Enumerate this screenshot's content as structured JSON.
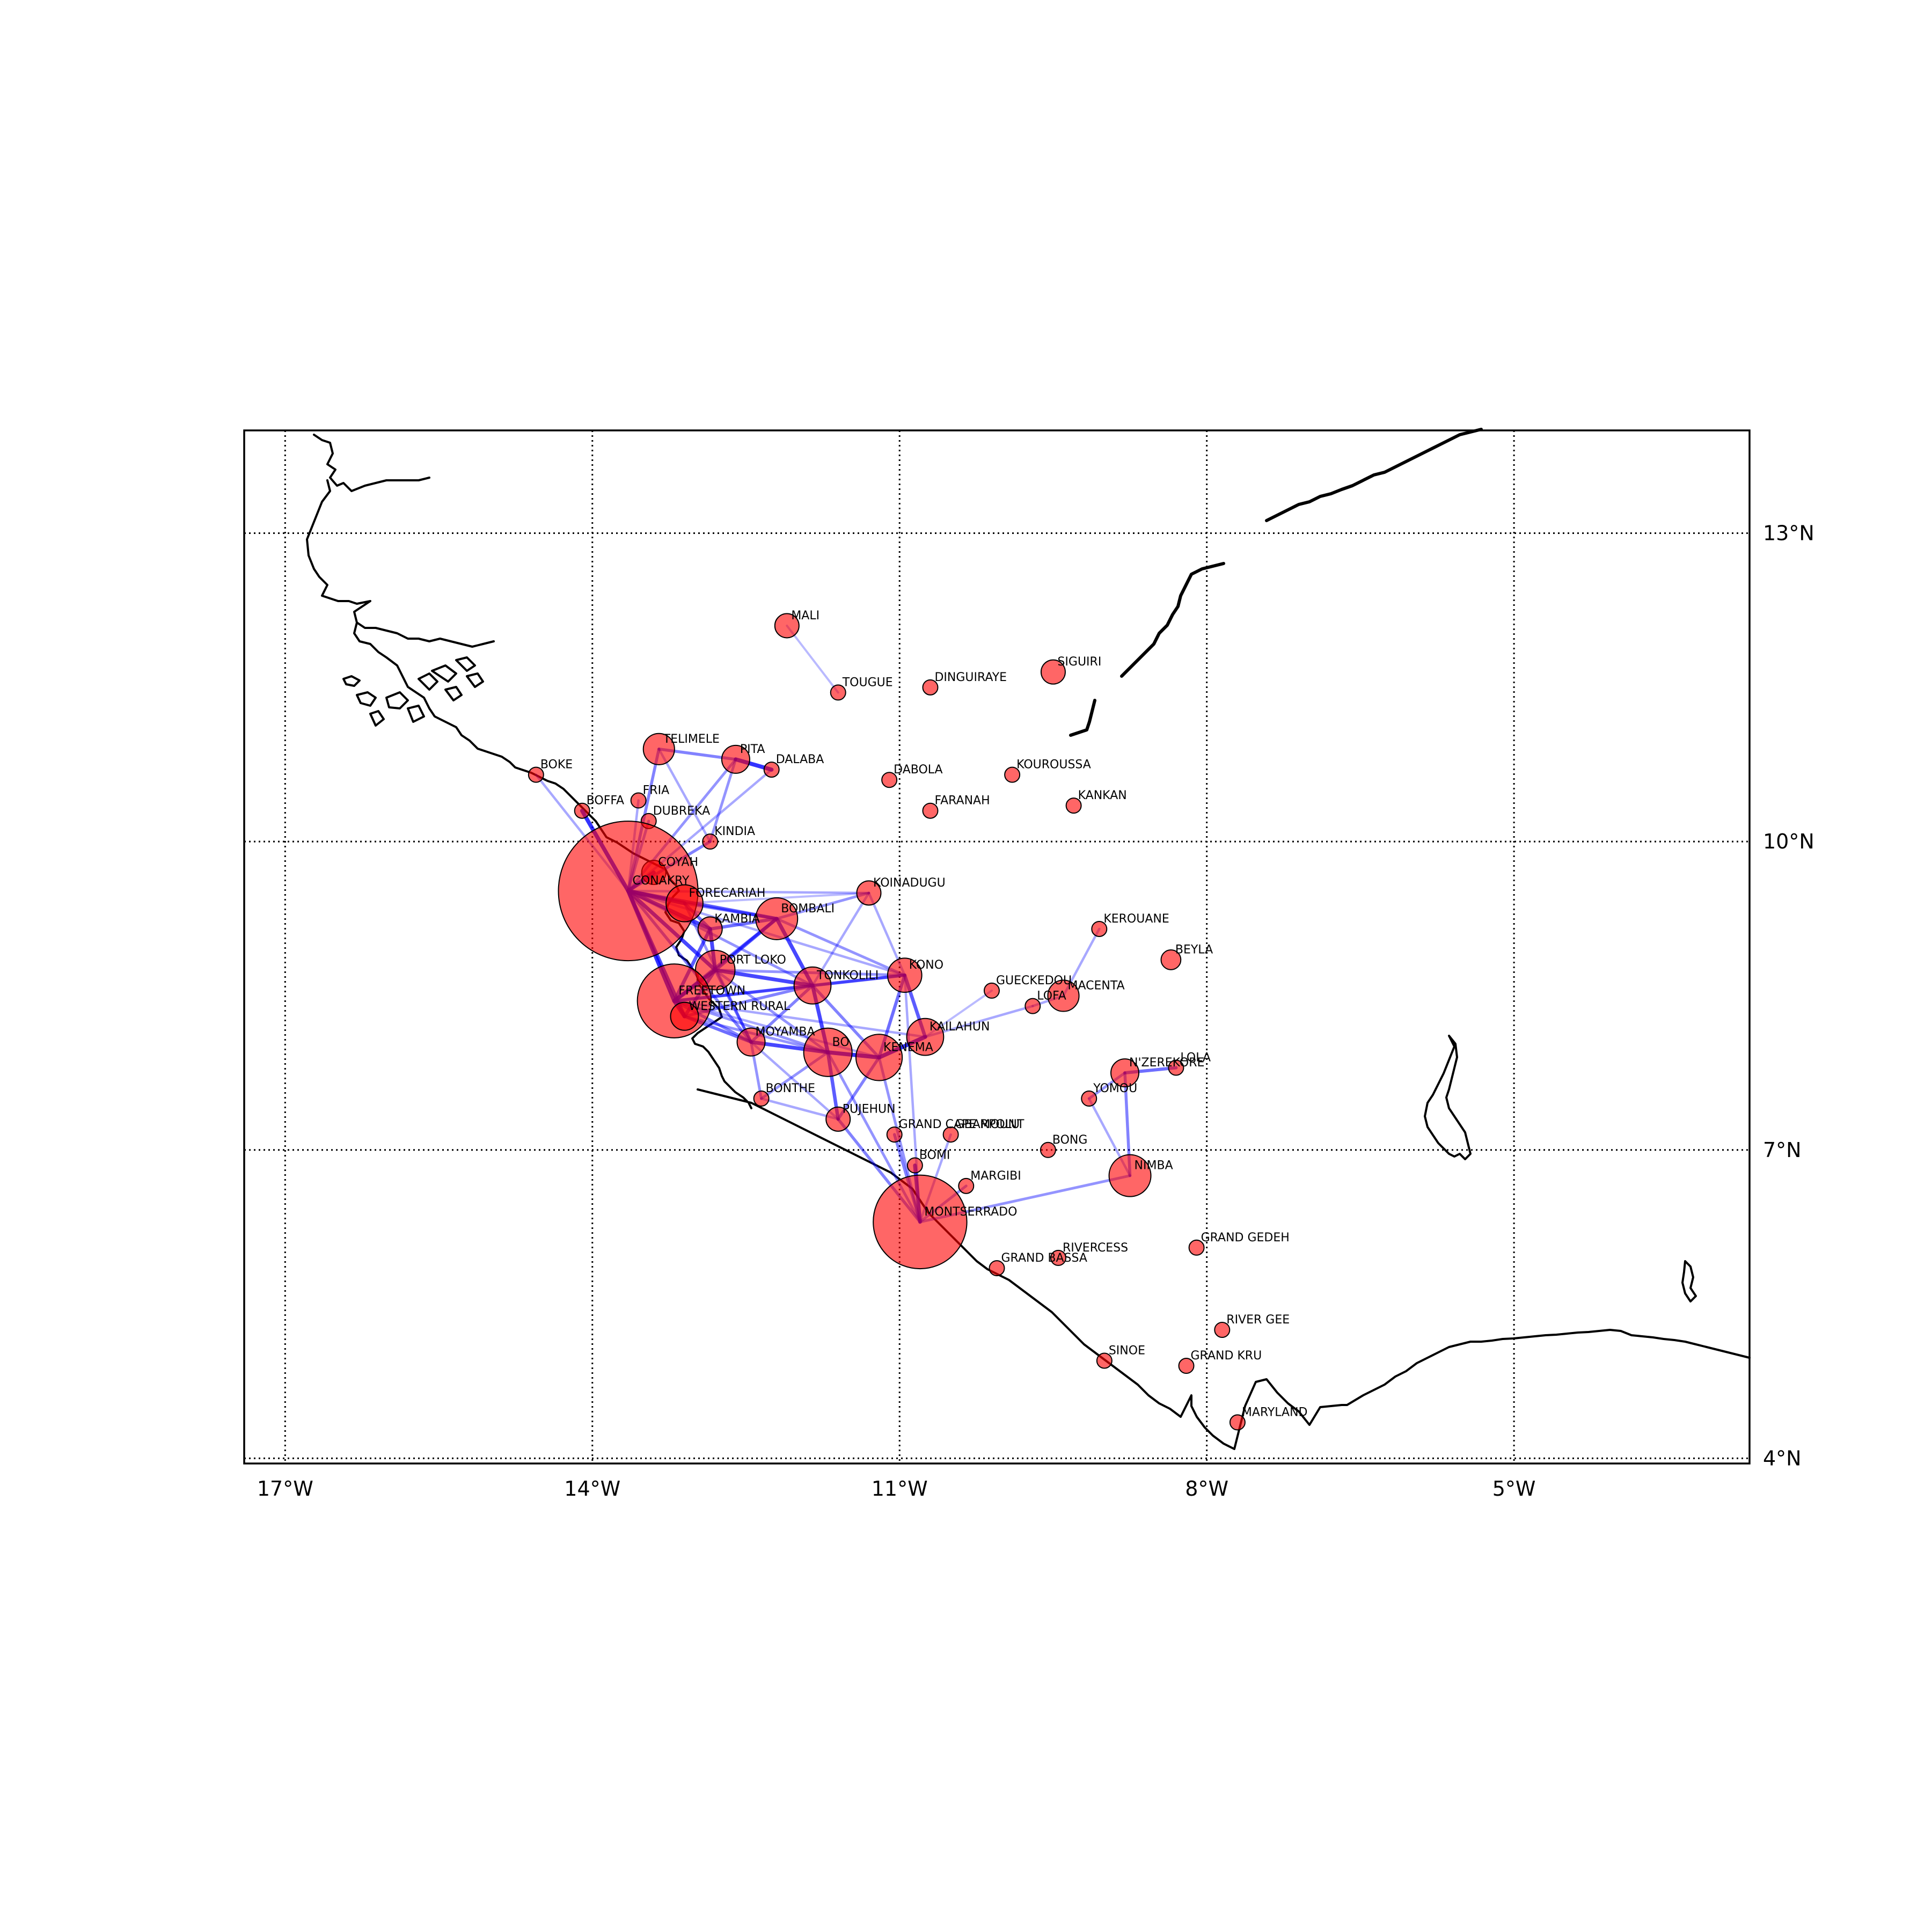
{
  "map": {
    "lon_range": [
      -17.4,
      -2.7
    ],
    "lat_range": [
      3.95,
      14.0
    ],
    "lon_ticks": [
      {
        "value": -17,
        "label": "17°W"
      },
      {
        "value": -14,
        "label": "14°W"
      },
      {
        "value": -11,
        "label": "11°W"
      },
      {
        "value": -8,
        "label": "8°W"
      },
      {
        "value": -5,
        "label": "5°W"
      }
    ],
    "lat_ticks": [
      {
        "value": 13,
        "label": "13°N"
      },
      {
        "value": 10,
        "label": "10°N"
      },
      {
        "value": 7,
        "label": "7°N"
      },
      {
        "value": 4,
        "label": "4°N"
      }
    ],
    "colors": {
      "node_fill": "#ff0000",
      "edge": "#0000ff",
      "coast": "#000000"
    }
  },
  "chart_data": {
    "type": "scatter",
    "title": "",
    "xlabel": "",
    "ylabel": "",
    "xlim": [
      -17.4,
      -2.7
    ],
    "ylim": [
      3.95,
      14.0
    ],
    "grid": true,
    "size_encoding": "relative case count (circle area)",
    "points": [
      {
        "name": "MALI",
        "lon": -12.1,
        "lat": 12.1,
        "size": 3
      },
      {
        "name": "TOUGUE",
        "lon": -11.6,
        "lat": 11.45,
        "size": 1
      },
      {
        "name": "DINGUIRAYE",
        "lon": -10.7,
        "lat": 11.5,
        "size": 1
      },
      {
        "name": "SIGUIRI",
        "lon": -9.5,
        "lat": 11.65,
        "size": 3
      },
      {
        "name": "TELIMELE",
        "lon": -13.35,
        "lat": 10.9,
        "size": 5
      },
      {
        "name": "PITA",
        "lon": -12.6,
        "lat": 10.8,
        "size": 4
      },
      {
        "name": "DALABA",
        "lon": -12.25,
        "lat": 10.7,
        "size": 1
      },
      {
        "name": "DABOLA",
        "lon": -11.1,
        "lat": 10.6,
        "size": 1
      },
      {
        "name": "KOUROUSSA",
        "lon": -9.9,
        "lat": 10.65,
        "size": 1
      },
      {
        "name": "FARANAH",
        "lon": -10.7,
        "lat": 10.3,
        "size": 1
      },
      {
        "name": "KANKAN",
        "lon": -9.3,
        "lat": 10.35,
        "size": 1
      },
      {
        "name": "BOKE",
        "lon": -14.55,
        "lat": 10.65,
        "size": 1
      },
      {
        "name": "BOFFA",
        "lon": -14.1,
        "lat": 10.3,
        "size": 1
      },
      {
        "name": "FRIA",
        "lon": -13.55,
        "lat": 10.4,
        "size": 1
      },
      {
        "name": "DUBREKA",
        "lon": -13.45,
        "lat": 10.2,
        "size": 1
      },
      {
        "name": "KINDIA",
        "lon": -12.85,
        "lat": 10.0,
        "size": 1
      },
      {
        "name": "COYAH",
        "lon": -13.4,
        "lat": 9.7,
        "size": 3
      },
      {
        "name": "CONAKRY",
        "lon": -13.65,
        "lat": 9.52,
        "size": 100
      },
      {
        "name": "FORECARIAH",
        "lon": -13.1,
        "lat": 9.4,
        "size": 7
      },
      {
        "name": "KOINADUGU",
        "lon": -11.3,
        "lat": 9.5,
        "size": 3
      },
      {
        "name": "BOMBALI",
        "lon": -12.2,
        "lat": 9.25,
        "size": 9
      },
      {
        "name": "KAMBIA",
        "lon": -12.85,
        "lat": 9.15,
        "size": 3
      },
      {
        "name": "KEROUANE",
        "lon": -9.05,
        "lat": 9.15,
        "size": 1
      },
      {
        "name": "BEYLA",
        "lon": -8.35,
        "lat": 8.85,
        "size": 2
      },
      {
        "name": "PORT LOKO",
        "lon": -12.8,
        "lat": 8.75,
        "size": 8
      },
      {
        "name": "KONO",
        "lon": -10.95,
        "lat": 8.7,
        "size": 6
      },
      {
        "name": "TONKOLILI",
        "lon": -11.85,
        "lat": 8.6,
        "size": 7
      },
      {
        "name": "GUECKEDOU",
        "lon": -10.1,
        "lat": 8.55,
        "size": 1
      },
      {
        "name": "LOFA",
        "lon": -9.7,
        "lat": 8.4,
        "size": 1
      },
      {
        "name": "MACENTA",
        "lon": -9.4,
        "lat": 8.5,
        "size": 5
      },
      {
        "name": "FREETOWN",
        "lon": -13.2,
        "lat": 8.45,
        "size": 28
      },
      {
        "name": "WESTERN RURAL",
        "lon": -13.1,
        "lat": 8.3,
        "size": 4
      },
      {
        "name": "MOYAMBA",
        "lon": -12.45,
        "lat": 8.05,
        "size": 4
      },
      {
        "name": "BO",
        "lon": -11.7,
        "lat": 7.95,
        "size": 12
      },
      {
        "name": "KENEMA",
        "lon": -11.2,
        "lat": 7.9,
        "size": 11
      },
      {
        "name": "KAILAHUN",
        "lon": -10.75,
        "lat": 8.1,
        "size": 7
      },
      {
        "name": "LOLA",
        "lon": -8.3,
        "lat": 7.8,
        "size": 1
      },
      {
        "name": "N'ZEREKORE",
        "lon": -8.8,
        "lat": 7.75,
        "size": 4
      },
      {
        "name": "YOMOU",
        "lon": -9.15,
        "lat": 7.5,
        "size": 1
      },
      {
        "name": "BONTHE",
        "lon": -12.35,
        "lat": 7.5,
        "size": 1
      },
      {
        "name": "PUJEHUN",
        "lon": -11.6,
        "lat": 7.3,
        "size": 3
      },
      {
        "name": "GRAND CAPE MOUNT",
        "lon": -11.05,
        "lat": 7.15,
        "size": 1
      },
      {
        "name": "GBARPOLU",
        "lon": -10.5,
        "lat": 7.15,
        "size": 1
      },
      {
        "name": "BONG",
        "lon": -9.55,
        "lat": 7.0,
        "size": 1
      },
      {
        "name": "BOMI",
        "lon": -10.85,
        "lat": 6.85,
        "size": 1
      },
      {
        "name": "NIMBA",
        "lon": -8.75,
        "lat": 6.75,
        "size": 9
      },
      {
        "name": "MARGIBI",
        "lon": -10.35,
        "lat": 6.65,
        "size": 1
      },
      {
        "name": "MONTSERRADO",
        "lon": -10.8,
        "lat": 6.3,
        "size": 45
      },
      {
        "name": "RIVERCESS",
        "lon": -9.45,
        "lat": 5.95,
        "size": 1
      },
      {
        "name": "GRAND GEDEH",
        "lon": -8.1,
        "lat": 6.05,
        "size": 1
      },
      {
        "name": "GRAND BASSA",
        "lon": -10.05,
        "lat": 5.85,
        "size": 1
      },
      {
        "name": "RIVER GEE",
        "lon": -7.85,
        "lat": 5.25,
        "size": 1
      },
      {
        "name": "SINOE",
        "lon": -9.0,
        "lat": 4.95,
        "size": 1
      },
      {
        "name": "GRAND KRU",
        "lon": -8.2,
        "lat": 4.9,
        "size": 1
      },
      {
        "name": "MARYLAND",
        "lon": -7.7,
        "lat": 4.35,
        "size": 1
      }
    ],
    "edges": [
      [
        "CONAKRY",
        "BOFFA",
        0.9
      ],
      [
        "CONAKRY",
        "BOKE",
        0.3
      ],
      [
        "CONAKRY",
        "TELIMELE",
        0.5
      ],
      [
        "CONAKRY",
        "PITA",
        0.4
      ],
      [
        "CONAKRY",
        "DALABA",
        0.3
      ],
      [
        "CONAKRY",
        "FRIA",
        0.3
      ],
      [
        "CONAKRY",
        "DUBREKA",
        0.4
      ],
      [
        "CONAKRY",
        "KINDIA",
        0.5
      ],
      [
        "CONAKRY",
        "COYAH",
        0.8
      ],
      [
        "CONAKRY",
        "FORECARIAH",
        0.9
      ],
      [
        "CONAKRY",
        "KAMBIA",
        0.8
      ],
      [
        "CONAKRY",
        "BOMBALI",
        0.7
      ],
      [
        "CONAKRY",
        "FREETOWN",
        0.9
      ],
      [
        "CONAKRY",
        "WESTERN RURAL",
        0.8
      ],
      [
        "CONAKRY",
        "PORT LOKO",
        0.8
      ],
      [
        "CONAKRY",
        "TONKOLILI",
        0.4
      ],
      [
        "CONAKRY",
        "KOINADUGU",
        0.3
      ],
      [
        "CONAKRY",
        "MOYAMBA",
        0.5
      ],
      [
        "CONAKRY",
        "KONO",
        0.3
      ],
      [
        "TELIMELE",
        "PITA",
        0.5
      ],
      [
        "PITA",
        "DALABA",
        0.9
      ],
      [
        "TELIMELE",
        "KINDIA",
        0.3
      ],
      [
        "PITA",
        "KINDIA",
        0.4
      ],
      [
        "MALI",
        "TOUGUE",
        0.2
      ],
      [
        "FREETOWN",
        "WESTERN RURAL",
        0.9
      ],
      [
        "FREETOWN",
        "PORT LOKO",
        0.9
      ],
      [
        "FREETOWN",
        "KAMBIA",
        0.7
      ],
      [
        "FREETOWN",
        "BOMBALI",
        0.6
      ],
      [
        "FREETOWN",
        "TONKOLILI",
        0.6
      ],
      [
        "FREETOWN",
        "MOYAMBA",
        0.5
      ],
      [
        "FREETOWN",
        "BO",
        0.4
      ],
      [
        "FREETOWN",
        "KENEMA",
        0.3
      ],
      [
        "FREETOWN",
        "KONO",
        0.4
      ],
      [
        "FREETOWN",
        "KAILAHUN",
        0.3
      ],
      [
        "WESTERN RURAL",
        "PORT LOKO",
        0.7
      ],
      [
        "WESTERN RURAL",
        "MOYAMBA",
        0.6
      ],
      [
        "WESTERN RURAL",
        "BO",
        0.4
      ],
      [
        "WESTERN RURAL",
        "TONKOLILI",
        0.5
      ],
      [
        "PORT LOKO",
        "KAMBIA",
        0.8
      ],
      [
        "PORT LOKO",
        "BOMBALI",
        0.7
      ],
      [
        "PORT LOKO",
        "TONKOLILI",
        0.8
      ],
      [
        "PORT LOKO",
        "MOYAMBA",
        0.5
      ],
      [
        "PORT LOKO",
        "KONO",
        0.4
      ],
      [
        "PORT LOKO",
        "BO",
        0.4
      ],
      [
        "KAMBIA",
        "BOMBALI",
        0.6
      ],
      [
        "KAMBIA",
        "FORECARIAH",
        0.6
      ],
      [
        "BOMBALI",
        "TONKOLILI",
        0.8
      ],
      [
        "BOMBALI",
        "KOINADUGU",
        0.4
      ],
      [
        "BOMBALI",
        "KONO",
        0.4
      ],
      [
        "BOMBALI",
        "FORECARIAH",
        0.5
      ],
      [
        "FORECARIAH",
        "KOINADUGU",
        0.2
      ],
      [
        "KOINADUGU",
        "TONKOLILI",
        0.3
      ],
      [
        "KOINADUGU",
        "KONO",
        0.3
      ],
      [
        "TONKOLILI",
        "KONO",
        0.6
      ],
      [
        "TONKOLILI",
        "BO",
        0.8
      ],
      [
        "TONKOLILI",
        "KENEMA",
        0.5
      ],
      [
        "TONKOLILI",
        "MOYAMBA",
        0.5
      ],
      [
        "KONO",
        "KENEMA",
        0.6
      ],
      [
        "KONO",
        "KAILAHUN",
        0.7
      ],
      [
        "MOYAMBA",
        "BO",
        0.8
      ],
      [
        "MOYAMBA",
        "BONTHE",
        0.4
      ],
      [
        "MOYAMBA",
        "PUJEHUN",
        0.3
      ],
      [
        "BO",
        "KENEMA",
        0.9
      ],
      [
        "BO",
        "PUJEHUN",
        0.7
      ],
      [
        "BO",
        "BONTHE",
        0.4
      ],
      [
        "KENEMA",
        "KAILAHUN",
        0.9
      ],
      [
        "KENEMA",
        "PUJEHUN",
        0.5
      ],
      [
        "KENEMA",
        "MONTSERRADO",
        0.4
      ],
      [
        "KAILAHUN",
        "LOFA",
        0.3
      ],
      [
        "PUJEHUN",
        "MONTSERRADO",
        0.5
      ],
      [
        "BONTHE",
        "PUJEHUN",
        0.3
      ],
      [
        "BO",
        "MONTSERRADO",
        0.4
      ],
      [
        "KONO",
        "MONTSERRADO",
        0.3
      ],
      [
        "MONTSERRADO",
        "BOMI",
        0.8
      ],
      [
        "MONTSERRADO",
        "GRAND CAPE MOUNT",
        0.5
      ],
      [
        "MONTSERRADO",
        "MARGIBI",
        0.4
      ],
      [
        "MONTSERRADO",
        "NIMBA",
        0.4
      ],
      [
        "MONTSERRADO",
        "GBARPOLU",
        0.3
      ],
      [
        "NIMBA",
        "N'ZEREKORE",
        0.5
      ],
      [
        "NIMBA",
        "YOMOU",
        0.3
      ],
      [
        "N'ZEREKORE",
        "LOLA",
        0.6
      ],
      [
        "N'ZEREKORE",
        "YOMOU",
        0.4
      ],
      [
        "MACENTA",
        "KEROUANE",
        0.3
      ],
      [
        "MACENTA",
        "LOFA",
        0.3
      ],
      [
        "KAILAHUN",
        "GUECKEDOU",
        0.2
      ],
      [
        "FORECARIAH",
        "MOYAMBA",
        0.4
      ]
    ]
  }
}
